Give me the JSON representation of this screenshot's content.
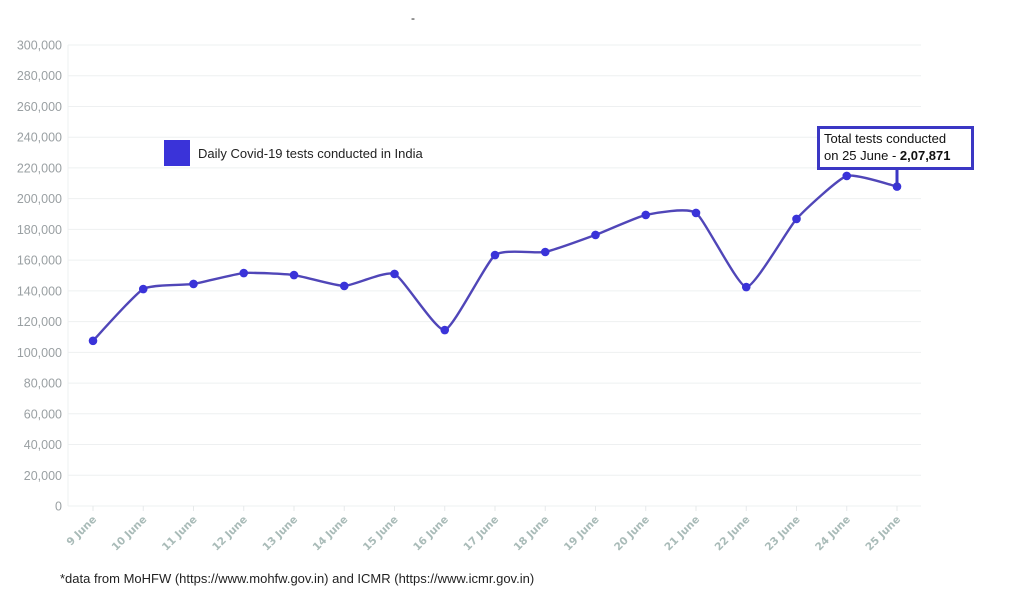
{
  "page": {
    "top_marker": "-",
    "footnote": "*data from MoHFW (https://www.mohfw.gov.in) and ICMR (https://www.icmr.gov.in)"
  },
  "legend": {
    "label": "Daily Covid-19 tests conducted in India",
    "color": "#3a33d9"
  },
  "callout": {
    "line1": "Total tests conducted",
    "line2_prefix": "on 25 June - ",
    "line2_value": "2,07,871",
    "border_color": "#3b37c4"
  },
  "colors": {
    "line": "#5046b8",
    "marker": "#3a33d9",
    "grid": "#eef0f1",
    "ytick": "#9aa0a3",
    "xtick": "#a9bbb8"
  },
  "chart_data": {
    "type": "line",
    "title": "",
    "xlabel": "",
    "ylabel": "",
    "ylim": [
      0,
      300000
    ],
    "yticks": [
      0,
      20000,
      40000,
      60000,
      80000,
      100000,
      120000,
      140000,
      160000,
      180000,
      200000,
      220000,
      240000,
      260000,
      280000,
      300000
    ],
    "ytick_labels": [
      "0",
      "20,000",
      "40,000",
      "60,000",
      "80,000",
      "100,000",
      "120,000",
      "140,000",
      "160,000",
      "180,000",
      "200,000",
      "220,000",
      "240,000",
      "260,000",
      "280,000",
      "300,000"
    ],
    "grid": true,
    "legend_position": "upper-left inside plot",
    "categories": [
      "9 June",
      "10 June",
      "11 June",
      "12 June",
      "13 June",
      "14 June",
      "15 June",
      "16 June",
      "17 June",
      "18 June",
      "19 June",
      "20 June",
      "21 June",
      "22 June",
      "23 June",
      "24 June",
      "25 June"
    ],
    "series": [
      {
        "name": "Daily Covid-19 tests conducted in India",
        "values": [
          107500,
          141200,
          144500,
          151600,
          150300,
          143200,
          151000,
          114500,
          163300,
          165300,
          176400,
          189400,
          190700,
          142500,
          186800,
          214800,
          207871
        ]
      }
    ],
    "annotations": [
      {
        "x": "25 June",
        "text": "Total tests conducted on 25 June - 2,07,871"
      }
    ]
  }
}
